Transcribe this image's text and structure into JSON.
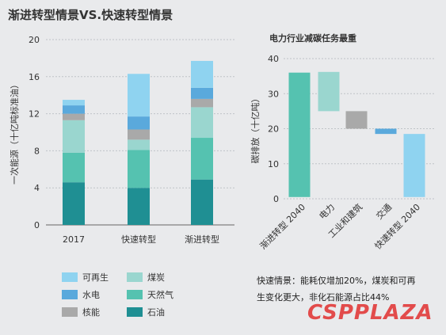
{
  "page_title": "渐进转型情景VS.快速转型情景",
  "note": "快速情景：能耗仅增加20%，煤炭和可再生变化更大，非化石能源占比44%",
  "watermark": "CSPPLAZA",
  "legend": [
    {
      "label": "可再生",
      "color": "#8fd3f0"
    },
    {
      "label": "煤炭",
      "color": "#9ad6cf"
    },
    {
      "label": "水电",
      "color": "#5aa9dc"
    },
    {
      "label": "天然气",
      "color": "#55c2b0"
    },
    {
      "label": "核能",
      "color": "#a9a9a9"
    },
    {
      "label": "石油",
      "color": "#1f8f93"
    }
  ],
  "chart_data": [
    {
      "type": "bar",
      "stacked": true,
      "title": "",
      "xlabel": "",
      "ylabel": "一次能源（十亿吨标准油）",
      "ylim": [
        0,
        20
      ],
      "yticks": [
        0,
        4,
        8,
        12,
        16,
        20
      ],
      "grid": true,
      "categories": [
        "2017",
        "快速转型",
        "渐进转型"
      ],
      "series": [
        {
          "name": "石油",
          "color": "#1f8f93",
          "values": [
            4.6,
            4.0,
            4.9
          ]
        },
        {
          "name": "天然气",
          "color": "#55c2b0",
          "values": [
            3.2,
            4.1,
            4.5
          ]
        },
        {
          "name": "煤炭",
          "color": "#9ad6cf",
          "values": [
            3.5,
            1.1,
            3.3
          ]
        },
        {
          "name": "核能",
          "color": "#a9a9a9",
          "values": [
            0.7,
            1.1,
            0.9
          ]
        },
        {
          "name": "水电",
          "color": "#5aa9dc",
          "values": [
            0.9,
            1.4,
            1.2
          ]
        },
        {
          "name": "可再生",
          "color": "#8fd3f0",
          "values": [
            0.6,
            4.6,
            2.9
          ]
        }
      ]
    },
    {
      "type": "waterfall",
      "title": "电力行业减碳任务最重",
      "xlabel": "",
      "ylabel": "碳排放（十亿吨）",
      "ylim": [
        0,
        40
      ],
      "yticks": [
        0,
        10,
        20,
        30,
        40
      ],
      "grid": true,
      "categories": [
        "渐进转型 2040",
        "电力",
        "工业和建筑",
        "交通",
        "快速转型 2040"
      ],
      "bars": [
        {
          "from": 0.5,
          "to": 36,
          "color": "#55c2b0"
        },
        {
          "from": 25,
          "to": 36.2,
          "color": "#9ad6cf"
        },
        {
          "from": 20,
          "to": 25,
          "color": "#a9a9a9"
        },
        {
          "from": 18.5,
          "to": 20,
          "color": "#5aa9dc"
        },
        {
          "from": 0.5,
          "to": 18.5,
          "color": "#8fd3f0"
        }
      ]
    }
  ]
}
